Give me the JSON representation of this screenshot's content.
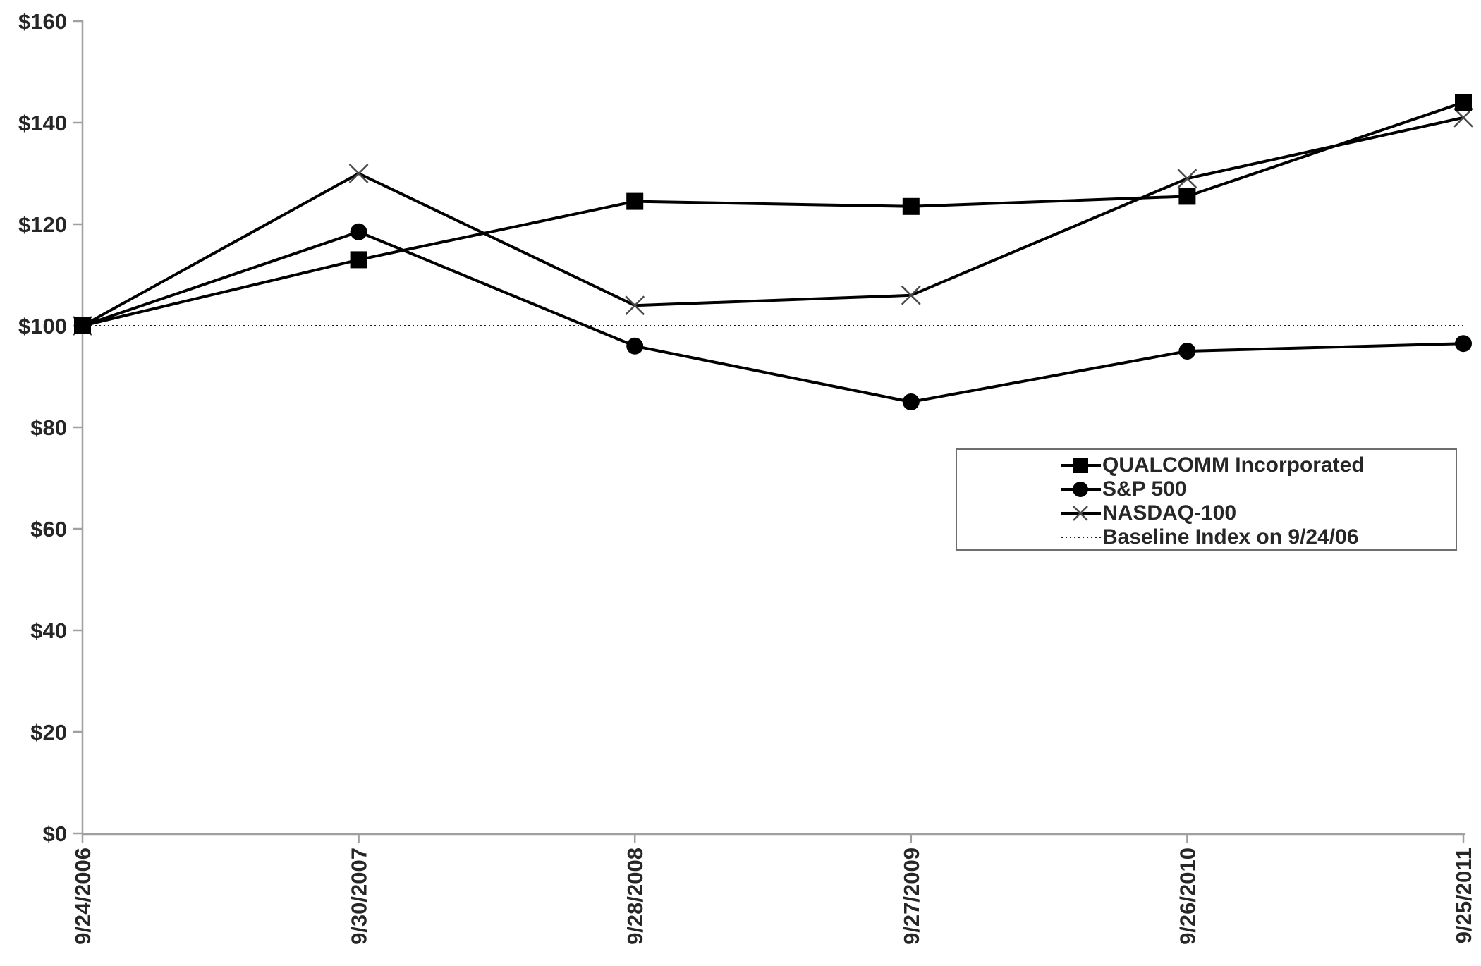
{
  "chart_data": {
    "type": "line",
    "title": "",
    "x_categories": [
      "9/24/2006",
      "9/30/2007",
      "9/28/2008",
      "9/27/2009",
      "9/26/2010",
      "9/25/2011"
    ],
    "series": [
      {
        "name": "QUALCOMM Incorporated",
        "marker": "square",
        "values": [
          100,
          113,
          124.5,
          123.5,
          125.5,
          144
        ]
      },
      {
        "name": "S&P 500",
        "marker": "circle",
        "values": [
          100,
          118.5,
          96,
          85,
          95,
          96.5
        ]
      },
      {
        "name": "NASDAQ-100",
        "marker": "x",
        "values": [
          100,
          130,
          104,
          106,
          129,
          141
        ]
      }
    ],
    "baseline": {
      "label": "Baseline Index on 9/24/06",
      "value": 100,
      "line_style": "dotted"
    },
    "y_tick_labels": [
      "$0",
      "$20",
      "$40",
      "$60",
      "$80",
      "$100",
      "$120",
      "$140",
      "$160"
    ],
    "ylim": [
      0,
      160
    ],
    "y_tick_step": 20,
    "grid": false,
    "legend_position": "middle-right",
    "colors": {
      "series_ink": "#000000",
      "x_marker_ink": "#4a4a4a",
      "axis": "#a0a0a0",
      "text": "#262626",
      "legend_border": "#6e6e6e",
      "background": "#ffffff"
    }
  }
}
